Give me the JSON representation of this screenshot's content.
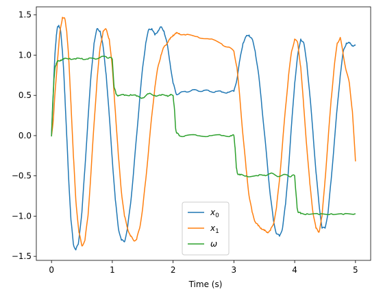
{
  "chart_data": {
    "type": "line",
    "title": "",
    "xlabel": "Time (s)",
    "ylabel": "",
    "xlim": [
      -0.25,
      5.25
    ],
    "ylim": [
      -1.55,
      1.6
    ],
    "xticks": [
      0,
      1,
      2,
      3,
      4,
      5
    ],
    "xtick_labels": [
      "0",
      "1",
      "2",
      "3",
      "4",
      "5"
    ],
    "yticks": [
      -1.5,
      -1.0,
      -0.5,
      0.0,
      0.5,
      1.0,
      1.5
    ],
    "ytick_labels": [
      "−1.5",
      "−1.0",
      "−0.5",
      "0.0",
      "0.5",
      "1.0",
      "1.5"
    ],
    "grid": false,
    "legend_position": "bottom-center",
    "series": [
      {
        "name": "x₀",
        "label_base": "x",
        "label_sub": "0",
        "color": "#1f77b4",
        "x": [
          0,
          0.02,
          0.04,
          0.06,
          0.08,
          0.1,
          0.12,
          0.15,
          0.18,
          0.2,
          0.22,
          0.25,
          0.28,
          0.32,
          0.36,
          0.4,
          0.44,
          0.5,
          0.55,
          0.6,
          0.65,
          0.7,
          0.75,
          0.8,
          0.85,
          0.9,
          0.95,
          1.0,
          1.05,
          1.1,
          1.15,
          1.2,
          1.25,
          1.3,
          1.35,
          1.4,
          1.45,
          1.5,
          1.55,
          1.6,
          1.65,
          1.7,
          1.75,
          1.8,
          1.85,
          1.9,
          1.95,
          2.0,
          2.05,
          2.1,
          2.2,
          2.3,
          2.4,
          2.5,
          2.6,
          2.7,
          2.8,
          2.9,
          3.0,
          3.05,
          3.1,
          3.15,
          3.2,
          3.25,
          3.3,
          3.35,
          3.4,
          3.45,
          3.5,
          3.55,
          3.6,
          3.65,
          3.7,
          3.75,
          3.8,
          3.85,
          3.9,
          3.95,
          4.0,
          4.05,
          4.1,
          4.15,
          4.2,
          4.25,
          4.3,
          4.35,
          4.4,
          4.45,
          4.5,
          4.55,
          4.6,
          4.65,
          4.7,
          4.75,
          4.8,
          4.85,
          4.9,
          4.95,
          5.0
        ],
        "y": [
          0.0,
          0.35,
          0.75,
          1.05,
          1.25,
          1.35,
          1.37,
          1.3,
          1.05,
          0.8,
          0.5,
          0.0,
          -0.5,
          -1.05,
          -1.35,
          -1.42,
          -1.35,
          -0.95,
          -0.4,
          0.2,
          0.75,
          1.15,
          1.33,
          1.3,
          1.1,
          0.75,
          0.25,
          -0.3,
          -0.8,
          -1.15,
          -1.3,
          -1.32,
          -1.15,
          -0.85,
          -0.45,
          0.0,
          0.45,
          0.85,
          1.15,
          1.32,
          1.33,
          1.25,
          1.3,
          1.35,
          1.3,
          1.15,
          0.9,
          0.65,
          0.52,
          0.52,
          0.55,
          0.56,
          0.56,
          0.56,
          0.55,
          0.55,
          0.54,
          0.54,
          0.55,
          0.7,
          0.95,
          1.15,
          1.23,
          1.25,
          1.2,
          1.05,
          0.8,
          0.45,
          0.05,
          -0.35,
          -0.75,
          -1.05,
          -1.22,
          -1.25,
          -1.15,
          -0.85,
          -0.4,
          0.15,
          0.65,
          1.0,
          1.2,
          1.15,
          0.9,
          0.5,
          0.05,
          -0.45,
          -0.85,
          -1.15,
          -1.15,
          -0.95,
          -0.55,
          -0.1,
          0.35,
          0.75,
          1.05,
          1.15,
          1.15,
          1.12,
          1.12
        ]
      },
      {
        "name": "x₁",
        "label_base": "x",
        "label_sub": "1",
        "color": "#ff7f0e",
        "x": [
          0,
          0.03,
          0.06,
          0.1,
          0.14,
          0.18,
          0.22,
          0.25,
          0.28,
          0.32,
          0.36,
          0.4,
          0.45,
          0.5,
          0.55,
          0.6,
          0.65,
          0.7,
          0.75,
          0.8,
          0.85,
          0.9,
          0.95,
          1.0,
          1.05,
          1.1,
          1.15,
          1.2,
          1.25,
          1.3,
          1.35,
          1.4,
          1.45,
          1.5,
          1.55,
          1.6,
          1.65,
          1.7,
          1.75,
          1.8,
          1.85,
          1.9,
          1.95,
          2.0,
          2.05,
          2.1,
          2.2,
          2.4,
          2.6,
          2.8,
          2.9,
          3.0,
          3.05,
          3.1,
          3.15,
          3.2,
          3.25,
          3.3,
          3.35,
          3.4,
          3.45,
          3.5,
          3.55,
          3.6,
          3.65,
          3.7,
          3.75,
          3.8,
          3.85,
          3.9,
          3.95,
          4.0,
          4.05,
          4.1,
          4.15,
          4.2,
          4.25,
          4.3,
          4.35,
          4.4,
          4.45,
          4.5,
          4.55,
          4.6,
          4.65,
          4.7,
          4.75,
          4.8,
          4.85,
          4.9,
          4.95,
          5.0
        ],
        "y": [
          0.0,
          0.2,
          0.55,
          0.95,
          1.3,
          1.47,
          1.45,
          1.3,
          1.0,
          0.4,
          -0.25,
          -0.8,
          -1.2,
          -1.37,
          -1.3,
          -1.0,
          -0.45,
          0.15,
          0.7,
          1.1,
          1.3,
          1.32,
          1.2,
          0.85,
          0.3,
          -0.25,
          -0.7,
          -1.0,
          -1.15,
          -1.25,
          -1.3,
          -1.29,
          -1.15,
          -0.9,
          -0.55,
          -0.15,
          0.25,
          0.6,
          0.85,
          1.0,
          1.1,
          1.15,
          1.2,
          1.25,
          1.27,
          1.27,
          1.25,
          1.23,
          1.2,
          1.14,
          1.1,
          1.05,
          0.85,
          0.45,
          0.0,
          -0.4,
          -0.75,
          -0.95,
          -1.07,
          -1.12,
          -1.15,
          -1.18,
          -1.2,
          -1.18,
          -1.1,
          -0.9,
          -0.55,
          -0.1,
          0.35,
          0.75,
          1.05,
          1.2,
          1.15,
          0.85,
          0.35,
          -0.15,
          -0.6,
          -0.95,
          -1.15,
          -1.2,
          -1.0,
          -0.55,
          -0.05,
          0.45,
          0.85,
          1.15,
          1.22,
          1.0,
          0.8,
          0.65,
          0.3,
          -0.32
        ]
      },
      {
        "name": "ω",
        "label_base": "ω",
        "label_sub": "",
        "color": "#2ca02c",
        "x": [
          0,
          0.02,
          0.04,
          0.06,
          0.08,
          0.1,
          0.15,
          0.2,
          0.3,
          0.4,
          0.5,
          0.6,
          0.7,
          0.8,
          0.9,
          0.95,
          1.0,
          1.03,
          1.06,
          1.1,
          1.2,
          1.3,
          1.4,
          1.5,
          1.6,
          1.7,
          1.8,
          1.9,
          1.95,
          2.0,
          2.02,
          2.04,
          2.06,
          2.1,
          2.2,
          2.4,
          2.6,
          2.8,
          2.95,
          3.0,
          3.02,
          3.04,
          3.06,
          3.1,
          3.2,
          3.4,
          3.5,
          3.6,
          3.7,
          3.8,
          3.9,
          3.95,
          4.0,
          4.02,
          4.04,
          4.06,
          4.1,
          4.2,
          4.4,
          4.6,
          4.8,
          5.0
        ],
        "y": [
          -0.01,
          0.4,
          0.7,
          0.85,
          0.9,
          0.92,
          0.94,
          0.95,
          0.96,
          0.95,
          0.96,
          0.95,
          0.96,
          0.97,
          0.98,
          0.97,
          0.95,
          0.6,
          0.52,
          0.5,
          0.5,
          0.51,
          0.49,
          0.47,
          0.52,
          0.5,
          0.5,
          0.5,
          0.5,
          0.5,
          0.35,
          0.1,
          0.03,
          0.0,
          0.0,
          0.0,
          0.0,
          0.0,
          0.0,
          0.0,
          -0.15,
          -0.4,
          -0.47,
          -0.49,
          -0.5,
          -0.5,
          -0.49,
          -0.47,
          -0.5,
          -0.49,
          -0.5,
          -0.5,
          -0.5,
          -0.7,
          -0.9,
          -0.95,
          -0.97,
          -0.97,
          -0.98,
          -0.97,
          -0.98,
          -0.97
        ]
      }
    ]
  }
}
